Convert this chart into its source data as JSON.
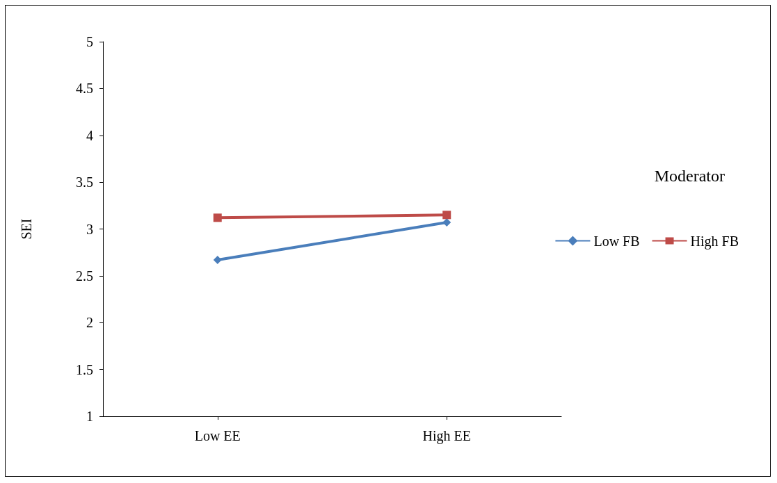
{
  "chart_data": {
    "type": "line",
    "ylabel": "SEI",
    "legend_title": "Moderator",
    "categories": [
      "Low EE",
      "High EE"
    ],
    "series": [
      {
        "name": "Low FB",
        "color": "#4a7ebb",
        "marker": "diamond",
        "values": [
          2.67,
          3.07
        ]
      },
      {
        "name": "High FB",
        "color": "#be4b48",
        "marker": "square",
        "values": [
          3.12,
          3.15
        ]
      }
    ],
    "ylim": [
      1,
      5
    ],
    "yticks": [
      1,
      1.5,
      2,
      2.5,
      3,
      3.5,
      4,
      4.5,
      5
    ],
    "grid": false,
    "legend": "right"
  }
}
